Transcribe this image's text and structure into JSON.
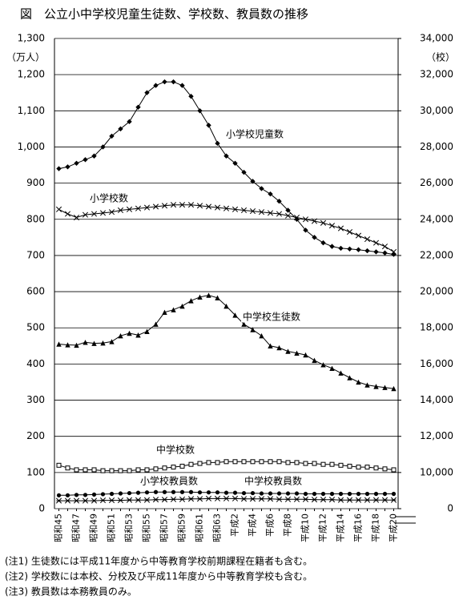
{
  "chart_data": {
    "type": "line",
    "title": "図　公立小中学校児童生徒数、学校数、教員数の推移",
    "ylabel": "（万人）",
    "y2label": "（校）",
    "categories": [
      "昭和45",
      null,
      "昭和47",
      null,
      "昭和49",
      null,
      "昭和51",
      null,
      "昭和53",
      null,
      "昭和55",
      null,
      "昭和57",
      null,
      "昭和59",
      null,
      "昭和61",
      null,
      "昭和63",
      null,
      "平成2",
      null,
      "平成4",
      null,
      "平成6",
      null,
      "平成8",
      null,
      "平成10",
      null,
      "平成12",
      null,
      "平成14",
      null,
      "平成16",
      null,
      "平成18",
      null,
      "平成20"
    ],
    "ylim": [
      0,
      1300
    ],
    "yticks": [
      0,
      100,
      200,
      300,
      400,
      500,
      600,
      700,
      800,
      900,
      {
        "value": 1000,
        "label": "1,000"
      },
      {
        "value": 1100,
        "label": "1,100"
      },
      {
        "value": 1200,
        "label": "1,200"
      },
      {
        "value": 1300,
        "label": "1,300"
      }
    ],
    "y2lim": [
      0,
      34000
    ],
    "y2break": [
      0,
      8000
    ],
    "y2ticks": [
      0,
      {
        "value": 10000,
        "label": "10,000"
      },
      {
        "value": 12000,
        "label": "12,000"
      },
      {
        "value": 14000,
        "label": "14,000"
      },
      {
        "value": 16000,
        "label": "16,000"
      },
      {
        "value": 18000,
        "label": "18,000"
      },
      {
        "value": 20000,
        "label": "20,000"
      },
      {
        "value": 22000,
        "label": "22,000"
      },
      {
        "value": 24000,
        "label": "24,000"
      },
      {
        "value": 26000,
        "label": "26,000"
      },
      {
        "value": 28000,
        "label": "28,000"
      },
      {
        "value": 30000,
        "label": "30,000"
      },
      {
        "value": 32000,
        "label": "32,000"
      },
      {
        "value": 34000,
        "label": "34,000"
      }
    ],
    "grid": true,
    "series": [
      {
        "name": "小学校児童数",
        "marker": "diamond",
        "color": "#000000",
        "values": [
          940,
          945,
          955,
          965,
          975,
          1000,
          1030,
          1050,
          1070,
          1110,
          1150,
          1170,
          1180,
          1180,
          1170,
          1140,
          1100,
          1060,
          1010,
          975,
          955,
          930,
          905,
          885,
          870,
          850,
          825,
          800,
          770,
          750,
          735,
          725,
          720,
          718,
          716,
          713,
          710,
          707,
          703
        ]
      },
      {
        "name": "中学校生徒数",
        "marker": "triangle",
        "color": "#000000",
        "values": [
          455,
          453,
          452,
          460,
          457,
          458,
          462,
          478,
          485,
          480,
          490,
          510,
          543,
          550,
          560,
          575,
          585,
          590,
          583,
          560,
          535,
          510,
          495,
          478,
          450,
          445,
          435,
          430,
          425,
          410,
          398,
          388,
          375,
          362,
          350,
          342,
          338,
          335,
          332
        ]
      },
      {
        "name": "小学校数",
        "marker": "x",
        "axis": "y2",
        "color": "#000000",
        "values": [
          24550,
          24300,
          24100,
          24250,
          24300,
          24350,
          24400,
          24500,
          24550,
          24600,
          24650,
          24700,
          24750,
          24800,
          24800,
          24800,
          24750,
          24700,
          24650,
          24600,
          24550,
          24500,
          24450,
          24400,
          24350,
          24300,
          24200,
          24100,
          24000,
          23900,
          23800,
          23650,
          23500,
          23300,
          23100,
          22900,
          22700,
          22500,
          22200
        ]
      },
      {
        "name": "中学校数",
        "marker": "square",
        "axis": "y2",
        "color": "#000000",
        "values": [
          10400,
          10250,
          10150,
          10150,
          10150,
          10100,
          10100,
          10100,
          10100,
          10150,
          10150,
          10200,
          10250,
          10300,
          10350,
          10450,
          10500,
          10550,
          10550,
          10600,
          10600,
          10600,
          10600,
          10600,
          10600,
          10600,
          10550,
          10550,
          10500,
          10500,
          10450,
          10450,
          10400,
          10350,
          10300,
          10300,
          10250,
          10200,
          10150
        ]
      },
      {
        "name": "小学校教員数",
        "marker": "circle",
        "color": "#000000",
        "values": [
          37,
          37,
          38,
          38,
          39,
          40,
          41,
          42,
          43,
          44,
          45,
          46,
          46,
          46,
          46,
          46,
          45,
          45,
          45,
          44,
          44,
          43,
          43,
          42,
          42,
          42,
          42,
          42,
          41,
          41,
          41,
          41,
          41,
          41,
          41,
          41,
          41,
          41,
          41
        ]
      },
      {
        "name": "中学校教員数",
        "marker": "asterisk",
        "color": "#000000",
        "values": [
          22,
          22,
          22,
          22,
          22,
          23,
          23,
          23,
          24,
          24,
          24,
          25,
          25,
          26,
          26,
          27,
          27,
          28,
          28,
          28,
          28,
          27,
          27,
          27,
          27,
          26,
          26,
          26,
          26,
          25,
          25,
          25,
          24,
          24,
          24,
          24,
          24,
          24,
          24
        ]
      }
    ]
  },
  "notes": [
    "(注1) 生徒数には平成11年度から中等教育学校前期課程在籍者も含む。",
    "(注2) 学校数には本校、分校及び平成11年度から中等教育学校も含む。",
    "(注3) 教員数は本務教員のみ。"
  ]
}
